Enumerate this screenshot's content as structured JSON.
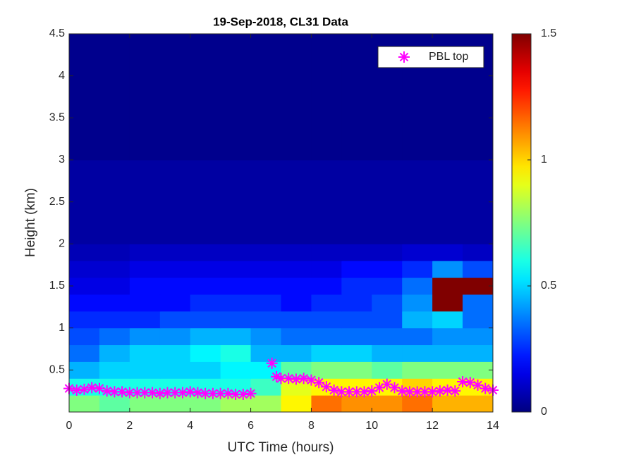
{
  "chart_data": {
    "type": "heatmap",
    "title": "19-Sep-2018, CL31 Data",
    "xlabel": "UTC Time (hours)",
    "ylabel": "Height (km)",
    "colormap": "jet",
    "x_edges": [
      0,
      1,
      2,
      3,
      4,
      5,
      6,
      7,
      8,
      9,
      10,
      11,
      12,
      13,
      14
    ],
    "y_edges": [
      0,
      0.2,
      0.4,
      0.6,
      0.8,
      1.0,
      1.2,
      1.4,
      1.6,
      1.8,
      2.0,
      3.0,
      4.5
    ],
    "z": [
      [
        0.75,
        0.7,
        0.75,
        0.75,
        0.75,
        0.8,
        0.8,
        0.95,
        1.15,
        1.1,
        1.1,
        1.15,
        1.05,
        1.05
      ],
      [
        0.6,
        0.6,
        0.6,
        0.6,
        0.6,
        0.6,
        0.65,
        0.9,
        0.95,
        0.95,
        0.95,
        1.0,
        0.95,
        0.95
      ],
      [
        0.45,
        0.5,
        0.5,
        0.5,
        0.5,
        0.55,
        0.55,
        0.7,
        0.75,
        0.75,
        0.7,
        0.75,
        0.75,
        0.75
      ],
      [
        0.35,
        0.45,
        0.5,
        0.5,
        0.55,
        0.6,
        0.45,
        0.45,
        0.5,
        0.5,
        0.45,
        0.45,
        0.45,
        0.45
      ],
      [
        0.3,
        0.35,
        0.4,
        0.4,
        0.45,
        0.45,
        0.4,
        0.35,
        0.35,
        0.35,
        0.35,
        0.35,
        0.4,
        0.4
      ],
      [
        0.25,
        0.25,
        0.25,
        0.3,
        0.3,
        0.3,
        0.3,
        0.3,
        0.3,
        0.3,
        0.3,
        0.45,
        0.5,
        0.35
      ],
      [
        0.2,
        0.2,
        0.2,
        0.2,
        0.25,
        0.25,
        0.25,
        0.2,
        0.25,
        0.25,
        0.3,
        0.4,
        1.5,
        0.35
      ],
      [
        0.15,
        0.15,
        0.2,
        0.2,
        0.2,
        0.2,
        0.2,
        0.2,
        0.2,
        0.25,
        0.25,
        0.35,
        1.5,
        1.5
      ],
      [
        0.12,
        0.12,
        0.15,
        0.15,
        0.15,
        0.15,
        0.15,
        0.15,
        0.15,
        0.2,
        0.2,
        0.25,
        0.4,
        0.3
      ],
      [
        0.08,
        0.08,
        0.1,
        0.1,
        0.1,
        0.1,
        0.1,
        0.1,
        0.1,
        0.1,
        0.1,
        0.12,
        0.12,
        0.1
      ],
      [
        0.05,
        0.05,
        0.05,
        0.05,
        0.05,
        0.05,
        0.05,
        0.05,
        0.05,
        0.05,
        0.05,
        0.05,
        0.05,
        0.05
      ],
      [
        0.02,
        0.02,
        0.02,
        0.02,
        0.02,
        0.02,
        0.02,
        0.02,
        0.02,
        0.02,
        0.02,
        0.02,
        0.02,
        0.02
      ]
    ],
    "clim": [
      0,
      1.5
    ],
    "colorbar_ticks": [
      0,
      0.5,
      1,
      1.5
    ],
    "xlim": [
      0,
      14
    ],
    "ylim": [
      0,
      4.5
    ],
    "xticks": [
      0,
      2,
      4,
      6,
      8,
      10,
      12,
      14
    ],
    "yticks": [
      0.5,
      1,
      1.5,
      2,
      2.5,
      3,
      3.5,
      4,
      4.5
    ],
    "legend": "upper right",
    "series": [
      {
        "name": "PBL top",
        "type": "scatter",
        "marker": "asterisk",
        "color": "#ff00ff",
        "x": [
          0,
          0.25,
          0.5,
          0.75,
          1,
          1.25,
          1.5,
          1.75,
          2,
          2.25,
          2.5,
          2.75,
          3,
          3.25,
          3.5,
          3.75,
          4,
          4.25,
          4.5,
          4.75,
          5,
          5.25,
          5.5,
          5.75,
          6,
          6.7,
          6.85,
          7,
          7.25,
          7.5,
          7.75,
          8,
          8.25,
          8.5,
          8.75,
          9,
          9.25,
          9.5,
          9.75,
          10,
          10.25,
          10.5,
          10.75,
          11,
          11.25,
          11.5,
          11.75,
          12,
          12.25,
          12.5,
          12.75,
          13,
          13.25,
          13.5,
          13.75,
          14
        ],
        "values": [
          0.28,
          0.26,
          0.27,
          0.29,
          0.28,
          0.25,
          0.24,
          0.24,
          0.23,
          0.23,
          0.23,
          0.23,
          0.22,
          0.23,
          0.23,
          0.23,
          0.24,
          0.23,
          0.22,
          0.22,
          0.22,
          0.22,
          0.21,
          0.21,
          0.22,
          0.58,
          0.42,
          0.4,
          0.4,
          0.39,
          0.4,
          0.38,
          0.35,
          0.3,
          0.26,
          0.24,
          0.24,
          0.24,
          0.24,
          0.25,
          0.29,
          0.33,
          0.29,
          0.25,
          0.24,
          0.24,
          0.24,
          0.24,
          0.25,
          0.26,
          0.25,
          0.36,
          0.35,
          0.32,
          0.28,
          0.26
        ]
      }
    ]
  }
}
